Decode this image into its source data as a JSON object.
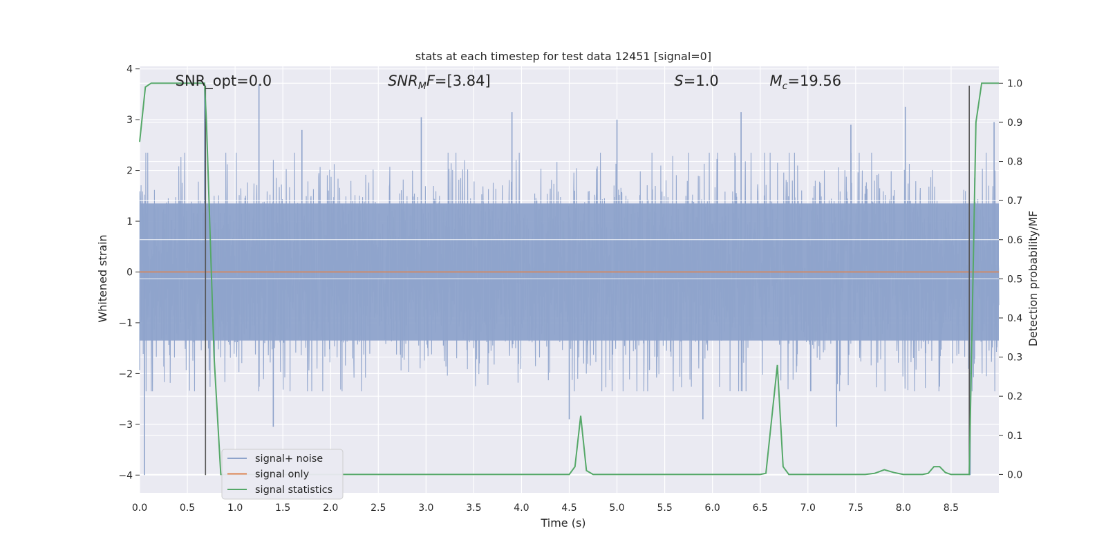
{
  "chart_data": {
    "type": "line",
    "title": "stats at each timestep for test data 12451 [signal=0]",
    "xlabel": "Time (s)",
    "ylabel": "Whitened strain",
    "y2label": "Detection probability/MF",
    "xlim": [
      0,
      9
    ],
    "ylim": [
      -4.35,
      4.05
    ],
    "y2lim": [
      -0.047,
      1.043
    ],
    "xticks": [
      "0.0",
      "0.5",
      "1.0",
      "1.5",
      "2.0",
      "2.5",
      "3.0",
      "3.5",
      "4.0",
      "4.5",
      "5.0",
      "5.5",
      "6.0",
      "6.5",
      "7.0",
      "7.5",
      "8.0",
      "8.5"
    ],
    "yticks": [
      "−4",
      "−3",
      "−2",
      "−1",
      "0",
      "1",
      "2",
      "3",
      "4"
    ],
    "y2ticks": [
      "0.0",
      "0.1",
      "0.2",
      "0.3",
      "0.4",
      "0.5",
      "0.6",
      "0.7",
      "0.8",
      "0.9",
      "1.0"
    ],
    "grid": true,
    "legend_position": "lower-left",
    "annotations": [
      {
        "text": "SNR_opt=0.0",
        "x": 0.2
      },
      {
        "text": "SNR_MF=[3.84]",
        "x": 2.6
      },
      {
        "text": "S=1.0",
        "x": 5.6
      },
      {
        "text": "M_c=19.56",
        "x": 6.6
      }
    ],
    "vlines_x": [
      0.69,
      8.69
    ],
    "vline_y_range": [
      -4.0,
      3.67
    ],
    "series": [
      {
        "name": "signal+ noise",
        "color": "#8ea3cb",
        "axis": "left",
        "description": "whitened noise, ~1.4 sigma, sampled over 0–9 s",
        "typical_band": [
          -1.35,
          1.35
        ],
        "extremes": [
          [
            0.05,
            -4.0
          ],
          [
            0.68,
            3.6
          ],
          [
            1.25,
            3.7
          ],
          [
            1.4,
            -3.05
          ],
          [
            1.7,
            2.8
          ],
          [
            2.95,
            3.05
          ],
          [
            3.9,
            3.15
          ],
          [
            4.5,
            -2.9
          ],
          [
            5.0,
            3.0
          ],
          [
            5.9,
            -2.9
          ],
          [
            6.3,
            3.15
          ],
          [
            7.3,
            -3.05
          ],
          [
            7.45,
            2.9
          ],
          [
            8.02,
            3.25
          ],
          [
            8.7,
            -4.0
          ],
          [
            8.95,
            2.95
          ]
        ]
      },
      {
        "name": "signal only",
        "color": "#dd8452",
        "axis": "left",
        "x": [
          0,
          9
        ],
        "y": [
          0,
          0
        ]
      },
      {
        "name": "signal statistics",
        "color": "#55a868",
        "axis": "right",
        "x": [
          0.0,
          0.06,
          0.12,
          0.2,
          0.3,
          0.5,
          0.68,
          0.7,
          0.78,
          0.85,
          1.0,
          2.0,
          3.0,
          4.0,
          4.5,
          4.56,
          4.62,
          4.68,
          4.75,
          5.0,
          6.0,
          6.5,
          6.56,
          6.68,
          6.74,
          6.8,
          7.0,
          7.6,
          7.7,
          7.8,
          7.9,
          8.0,
          8.2,
          8.26,
          8.32,
          8.38,
          8.44,
          8.5,
          8.6,
          8.69,
          8.76,
          8.82,
          8.9,
          9.0
        ],
        "y": [
          0.85,
          0.99,
          1.0,
          1.0,
          1.0,
          1.0,
          1.0,
          0.9,
          0.3,
          0.0,
          0.0,
          0.0,
          0.0,
          0.0,
          0.0,
          0.02,
          0.15,
          0.01,
          0.0,
          0.0,
          0.0,
          0.0,
          0.003,
          0.28,
          0.02,
          0.0,
          0.0,
          0.0,
          0.003,
          0.012,
          0.005,
          0.0,
          0.0,
          0.003,
          0.02,
          0.02,
          0.005,
          0.0,
          0.0,
          0.0,
          0.9,
          1.0,
          1.0,
          1.0
        ]
      }
    ]
  }
}
